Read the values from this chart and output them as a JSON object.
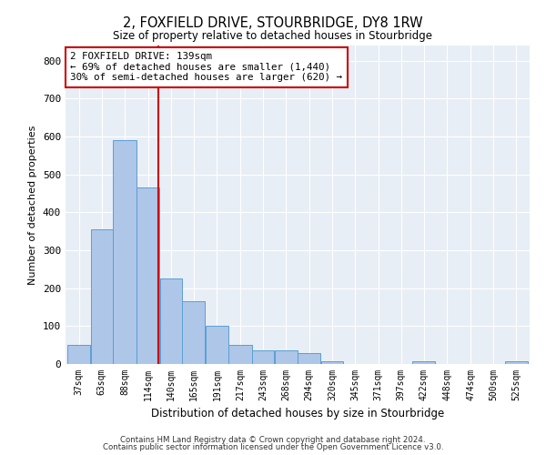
{
  "title": "2, FOXFIELD DRIVE, STOURBRIDGE, DY8 1RW",
  "subtitle": "Size of property relative to detached houses in Stourbridge",
  "xlabel": "Distribution of detached houses by size in Stourbridge",
  "ylabel": "Number of detached properties",
  "footnote1": "Contains HM Land Registry data © Crown copyright and database right 2024.",
  "footnote2": "Contains public sector information licensed under the Open Government Licence v3.0.",
  "bar_edges": [
    37,
    63,
    88,
    114,
    140,
    165,
    191,
    217,
    243,
    268,
    294,
    320,
    345,
    371,
    397,
    422,
    448,
    474,
    500,
    525,
    551
  ],
  "bar_heights": [
    50,
    355,
    590,
    465,
    225,
    165,
    100,
    50,
    35,
    35,
    30,
    8,
    0,
    0,
    0,
    8,
    0,
    0,
    0,
    8
  ],
  "bar_color": "#aec6e8",
  "bar_edge_color": "#5a9fd4",
  "bg_color": "#e8eef5",
  "grid_color": "#ffffff",
  "vline_x": 139,
  "vline_color": "#cc0000",
  "ylim": [
    0,
    840
  ],
  "yticks": [
    0,
    100,
    200,
    300,
    400,
    500,
    600,
    700,
    800
  ],
  "annotation_text": "2 FOXFIELD DRIVE: 139sqm\n← 69% of detached houses are smaller (1,440)\n30% of semi-detached houses are larger (620) →",
  "annotation_box_color": "#cc0000"
}
